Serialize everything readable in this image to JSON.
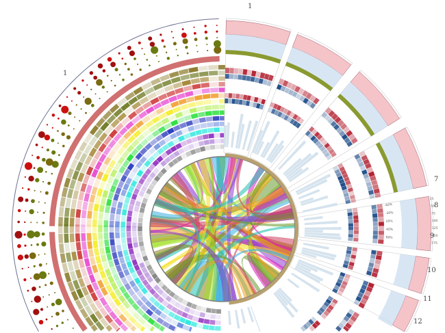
{
  "figure": {
    "chromosome_labels_right": [
      "1",
      "7",
      "8",
      "9",
      "10",
      "11",
      "12"
    ],
    "chromosome_label_left": "1",
    "heatmap_percent_ticks": [
      "-40%",
      "-20%",
      "20%",
      "40%",
      "60%"
    ],
    "depth_ticks": [
      "25",
      "50",
      "75",
      "100",
      "125",
      "150",
      "175"
    ],
    "ring_colors": [
      "#8b7a2a",
      "#6e7a22",
      "#a78a3c",
      "#d04040",
      "#e84fd0",
      "#f0a030",
      "#f5ee30",
      "#b8f060",
      "#30e040",
      "#3040c0",
      "#7090e0",
      "#30e8e0",
      "#9030c0",
      "#c0a0e0",
      "#888888"
    ],
    "dot_colors": [
      "#7a6a10",
      "#6b7a10",
      "#cc1010",
      "#a01010"
    ],
    "ribbon_colors": [
      "#f5e020",
      "#e020c0",
      "#8a8020",
      "#3ab0e0",
      "#a0e020",
      "#9040d0",
      "#f0a020",
      "#20c0b0",
      "#6a9a30",
      "#d04060"
    ],
    "wedge_colors": {
      "upper": "#f4c4c8",
      "lower": "#c8dcef",
      "heat_red": "#b22030",
      "heat_blue": "#1f4e8a",
      "band": "#8a9a30"
    }
  }
}
